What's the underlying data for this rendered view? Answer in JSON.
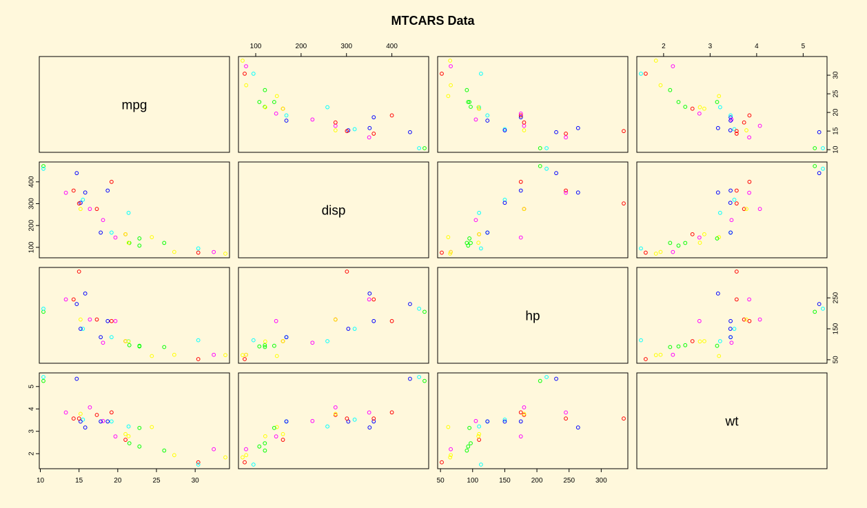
{
  "chart_data": {
    "type": "scatter",
    "title": "MTCARS Data",
    "variables": [
      "mpg",
      "disp",
      "hp",
      "wt"
    ],
    "ranges": {
      "mpg": [
        10.4,
        33.9
      ],
      "disp": [
        71.1,
        472
      ],
      "hp": [
        52,
        335
      ],
      "wt": [
        1.513,
        5.424
      ]
    },
    "ticks": {
      "mpg": [
        10,
        15,
        20,
        25,
        30
      ],
      "disp": [
        100,
        200,
        300,
        400
      ],
      "hp": [
        50,
        100,
        150,
        200,
        250,
        300
      ],
      "wt": [
        2,
        3,
        4,
        5
      ]
    },
    "tick_labels": {
      "top": {
        "disp": [
          "100",
          "200",
          "300",
          "400"
        ],
        "wt": [
          "2",
          "3",
          "4",
          "5"
        ]
      },
      "bottom": {
        "mpg": [
          "10",
          "15",
          "20",
          "25",
          "30"
        ],
        "hp": [
          "50",
          "100",
          "150",
          "200",
          "250",
          "300"
        ]
      },
      "left": {
        "disp": [
          "100",
          "200",
          "300",
          "400"
        ],
        "wt": [
          "2",
          "3",
          "4",
          "5"
        ]
      },
      "right": {
        "mpg": [
          "10",
          "15",
          "20",
          "25",
          "30"
        ],
        "hp": [
          "50",
          "150",
          "250"
        ]
      }
    },
    "tick_values": {
      "right": {
        "hp": [
          50,
          150,
          250
        ]
      }
    },
    "grid": false,
    "colors": [
      "#ff0000",
      "#ffff00",
      "#00ff00",
      "#00ffff",
      "#0000ff",
      "#ff00ff"
    ],
    "observations": [
      {
        "mpg": 21.0,
        "disp": 160,
        "hp": 110,
        "wt": 2.62
      },
      {
        "mpg": 21.0,
        "disp": 160,
        "hp": 110,
        "wt": 2.875
      },
      {
        "mpg": 22.8,
        "disp": 108,
        "hp": 93,
        "wt": 2.32
      },
      {
        "mpg": 21.4,
        "disp": 258,
        "hp": 110,
        "wt": 3.215
      },
      {
        "mpg": 18.7,
        "disp": 360,
        "hp": 175,
        "wt": 3.44
      },
      {
        "mpg": 18.1,
        "disp": 225,
        "hp": 105,
        "wt": 3.46
      },
      {
        "mpg": 14.3,
        "disp": 360,
        "hp": 245,
        "wt": 3.57
      },
      {
        "mpg": 24.4,
        "disp": 146.7,
        "hp": 62,
        "wt": 3.19
      },
      {
        "mpg": 22.8,
        "disp": 140.8,
        "hp": 95,
        "wt": 3.15
      },
      {
        "mpg": 19.2,
        "disp": 167.6,
        "hp": 123,
        "wt": 3.44
      },
      {
        "mpg": 17.8,
        "disp": 167.6,
        "hp": 123,
        "wt": 3.44
      },
      {
        "mpg": 16.4,
        "disp": 275.8,
        "hp": 180,
        "wt": 4.07
      },
      {
        "mpg": 17.3,
        "disp": 275.8,
        "hp": 180,
        "wt": 3.73
      },
      {
        "mpg": 15.2,
        "disp": 275.8,
        "hp": 180,
        "wt": 3.78
      },
      {
        "mpg": 10.4,
        "disp": 472,
        "hp": 205,
        "wt": 5.25
      },
      {
        "mpg": 10.4,
        "disp": 460,
        "hp": 215,
        "wt": 5.424
      },
      {
        "mpg": 14.7,
        "disp": 440,
        "hp": 230,
        "wt": 5.345
      },
      {
        "mpg": 32.4,
        "disp": 78.7,
        "hp": 66,
        "wt": 2.2
      },
      {
        "mpg": 30.4,
        "disp": 75.7,
        "hp": 52,
        "wt": 1.615
      },
      {
        "mpg": 33.9,
        "disp": 71.1,
        "hp": 65,
        "wt": 1.835
      },
      {
        "mpg": 21.5,
        "disp": 120.1,
        "hp": 97,
        "wt": 2.465
      },
      {
        "mpg": 15.5,
        "disp": 318,
        "hp": 150,
        "wt": 3.52
      },
      {
        "mpg": 15.2,
        "disp": 304,
        "hp": 150,
        "wt": 3.435
      },
      {
        "mpg": 13.3,
        "disp": 350,
        "hp": 245,
        "wt": 3.84
      },
      {
        "mpg": 19.2,
        "disp": 400,
        "hp": 175,
        "wt": 3.845
      },
      {
        "mpg": 27.3,
        "disp": 79,
        "hp": 66,
        "wt": 1.935
      },
      {
        "mpg": 26.0,
        "disp": 120.3,
        "hp": 91,
        "wt": 2.14
      },
      {
        "mpg": 30.4,
        "disp": 95.1,
        "hp": 113,
        "wt": 1.513
      },
      {
        "mpg": 15.8,
        "disp": 351,
        "hp": 264,
        "wt": 3.17
      },
      {
        "mpg": 19.7,
        "disp": 145,
        "hp": 175,
        "wt": 2.77
      },
      {
        "mpg": 15.0,
        "disp": 301,
        "hp": 335,
        "wt": 3.57
      },
      {
        "mpg": 21.4,
        "disp": 121,
        "hp": 109,
        "wt": 2.78
      }
    ]
  }
}
